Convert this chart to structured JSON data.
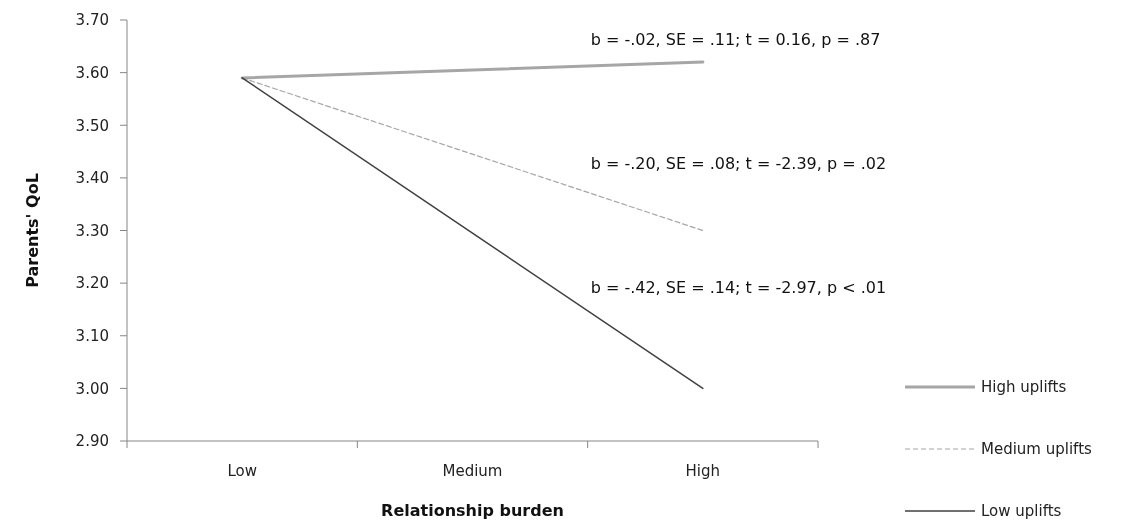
{
  "chart_data": {
    "type": "line",
    "xlabel": "Relationship burden",
    "ylabel": "Parents' QoL",
    "categories": [
      "Low",
      "Medium",
      "High"
    ],
    "series": [
      {
        "name": "High uplifts",
        "color": "#a6a6a6",
        "values": [
          3.59,
          3.605,
          3.62
        ],
        "line_style": "solid"
      },
      {
        "name": "Medium uplifts",
        "color": "#a6a6a6",
        "values": [
          3.59,
          3.445,
          3.3
        ],
        "line_style": "dashed"
      },
      {
        "name": "Low uplifts",
        "color": "#404040",
        "values": [
          3.59,
          3.295,
          3.0
        ],
        "line_style": "solid"
      }
    ],
    "ylim": [
      2.9,
      3.7
    ],
    "yticks": [
      {
        "value": 2.9,
        "label": "2.90"
      },
      {
        "value": 3.0,
        "label": "3.00"
      },
      {
        "value": 3.1,
        "label": "3.10"
      },
      {
        "value": 3.2,
        "label": "3.20"
      },
      {
        "value": 3.3,
        "label": "3.30"
      },
      {
        "value": 3.4,
        "label": "3.40"
      },
      {
        "value": 3.5,
        "label": "3.50"
      },
      {
        "value": 3.6,
        "label": "3.60"
      },
      {
        "value": 3.7,
        "label": "3.70"
      }
    ],
    "annotations": [
      "b = -.02, SE = .11; t = 0.16, p = .87",
      "b = -.20, SE = .08; t = -2.39, p = .02",
      "b = -.42, SE = .14; t = -2.97, p < .01"
    ],
    "legend": "bottom right",
    "grid": false,
    "marker": "none"
  }
}
